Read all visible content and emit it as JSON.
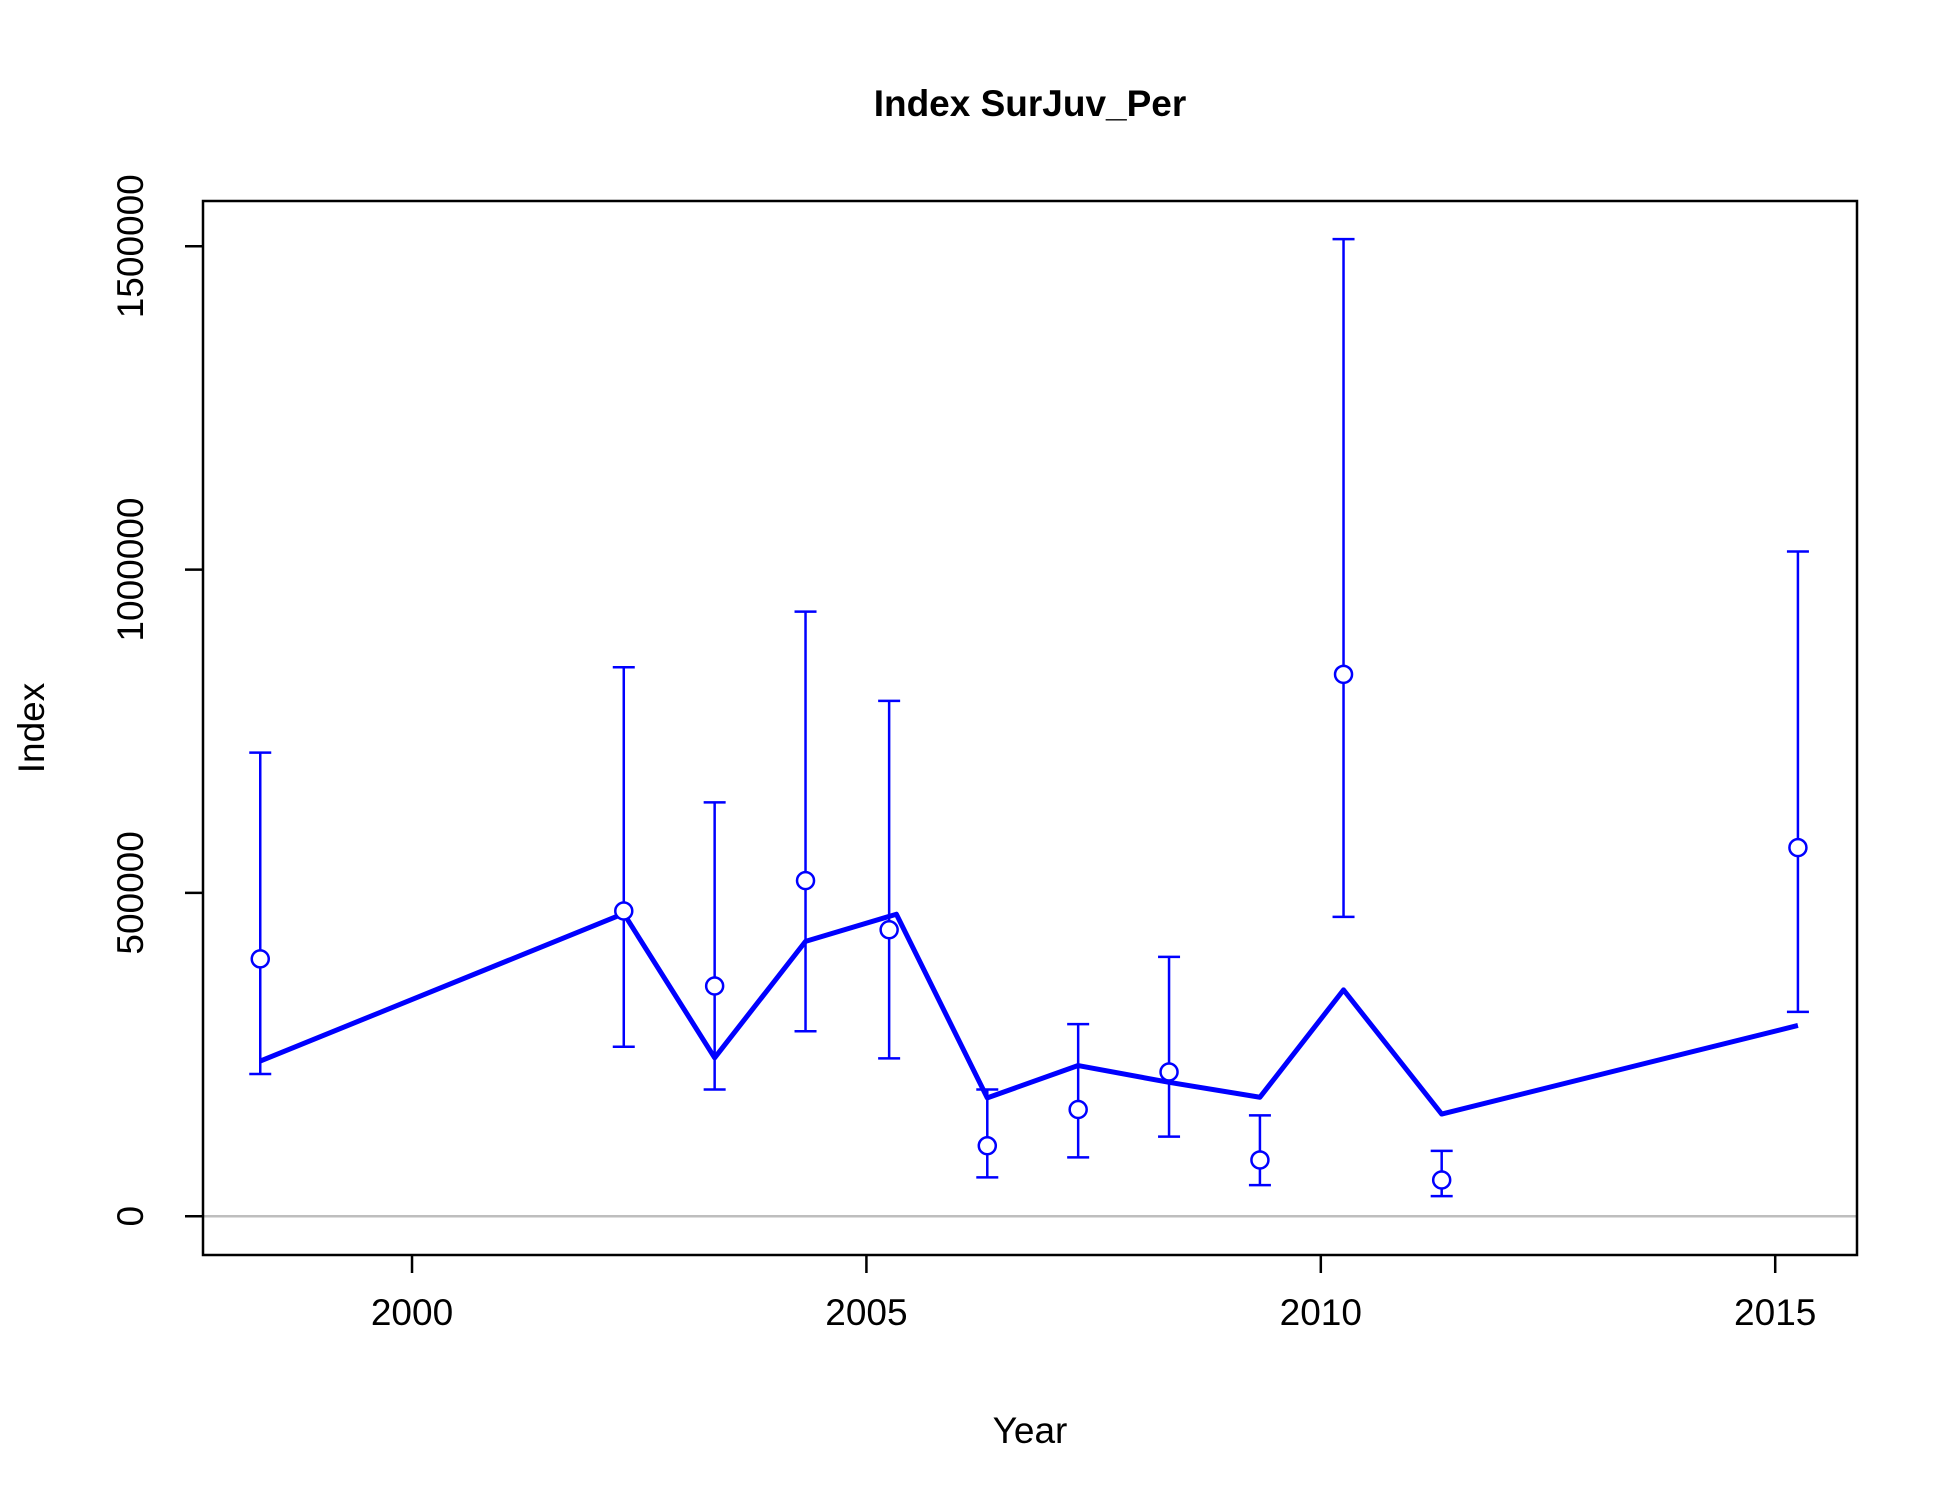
{
  "chart_data": {
    "type": "line",
    "title": "Index SurJuv_Per",
    "xlabel": "Year",
    "ylabel": "Index",
    "xlim": [
      1997.7,
      2015.9
    ],
    "ylim": [
      -60000,
      1570000
    ],
    "x_ticks": [
      2000,
      2005,
      2010,
      2015
    ],
    "x_tick_labels": [
      "2000",
      "2005",
      "2010",
      "2015"
    ],
    "y_ticks": [
      0,
      500000,
      1000000,
      1500000
    ],
    "y_tick_labels": [
      "0",
      "500000",
      "1000000",
      "1500000"
    ],
    "grid": false,
    "zero_line": true,
    "colors": {
      "series": "#0000ff",
      "zero_line": "#bebebe",
      "axis": "#000000"
    },
    "observed": {
      "x": [
        1998.33,
        2002.33,
        2003.33,
        2004.33,
        2005.25,
        2006.33,
        2007.33,
        2008.33,
        2009.33,
        2010.25,
        2011.33,
        2015.25
      ],
      "y": [
        398000,
        472000,
        356000,
        519000,
        443000,
        109000,
        165000,
        223000,
        87000,
        838000,
        56000,
        570000
      ],
      "lower": [
        220000,
        262000,
        196000,
        286000,
        244000,
        60000,
        91000,
        123000,
        48000,
        463000,
        31000,
        316000
      ],
      "upper": [
        717000,
        849000,
        640000,
        935000,
        797000,
        196000,
        297000,
        401000,
        156000,
        1511000,
        101000,
        1028000
      ]
    },
    "expected": {
      "x": [
        1998.33,
        2002.33,
        2003.33,
        2004.33,
        2005.33,
        2006.33,
        2007.33,
        2008.33,
        2009.33,
        2010.25,
        2011.33,
        2015.25
      ],
      "y": [
        240000,
        468000,
        245000,
        425000,
        467000,
        183000,
        233000,
        207000,
        184000,
        350000,
        158000,
        295000
      ]
    }
  }
}
